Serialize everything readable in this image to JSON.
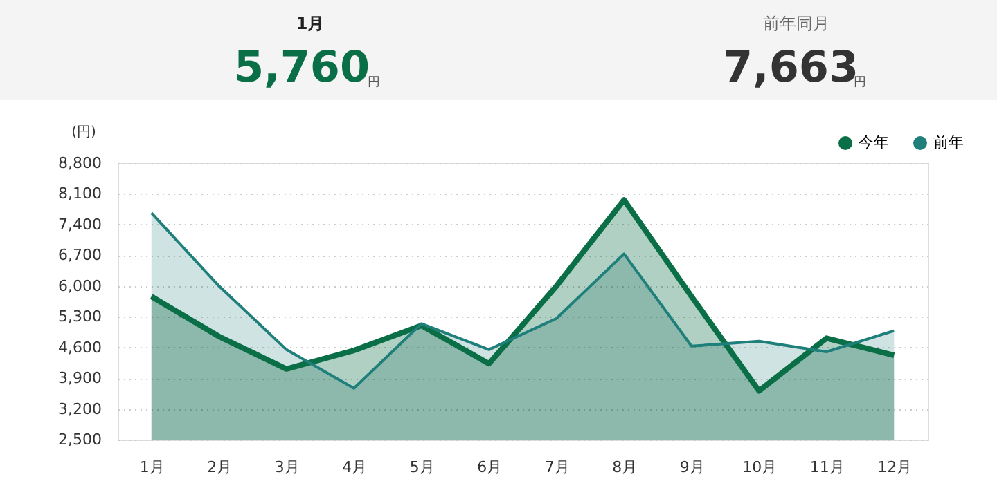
{
  "chart_data": {
    "type": "area",
    "ylabel": "(円)",
    "categories": [
      "1月",
      "2月",
      "3月",
      "4月",
      "5月",
      "6月",
      "7月",
      "8月",
      "9月",
      "10月",
      "11月",
      "12月"
    ],
    "series": [
      {
        "name": "今年",
        "color": "#0a6e46",
        "values": [
          5760,
          4850,
          4110,
          4530,
          5100,
          4230,
          6000,
          7960,
          5760,
          3610,
          4810,
          4420
        ]
      },
      {
        "name": "前年",
        "color": "#1f7f7a",
        "values": [
          7663,
          6000,
          4550,
          3670,
          5140,
          4550,
          5260,
          6730,
          4630,
          4740,
          4500,
          4980
        ]
      }
    ],
    "ylim": [
      2500,
      8800
    ],
    "yticks": [
      {
        "value": 2500,
        "label": "2,500"
      },
      {
        "value": 3200,
        "label": "3,200"
      },
      {
        "value": 3900,
        "label": "3,900"
      },
      {
        "value": 4600,
        "label": "4,600"
      },
      {
        "value": 5300,
        "label": "5,300"
      },
      {
        "value": 6000,
        "label": "6,000"
      },
      {
        "value": 6700,
        "label": "6,700"
      },
      {
        "value": 7400,
        "label": "7,400"
      },
      {
        "value": 8100,
        "label": "8,100"
      },
      {
        "value": 8800,
        "label": "8,800"
      }
    ],
    "grid": "y",
    "legend": "top right",
    "annotations": [
      "1月",
      "5,760",
      "円",
      "前年同月",
      "7,663",
      "円"
    ]
  }
}
